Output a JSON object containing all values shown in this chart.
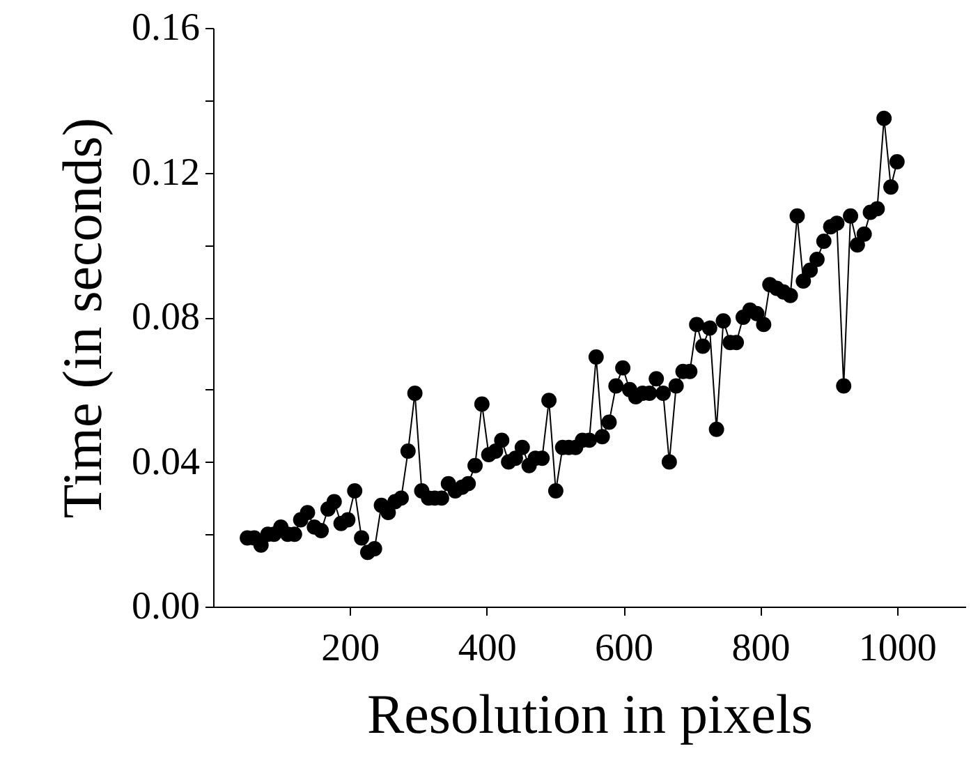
{
  "chart_data": {
    "type": "line",
    "xlabel": "Resolution in pixels",
    "ylabel": "Time (in seconds)",
    "xlim": [
      0,
      1100
    ],
    "xticks": [
      200,
      400,
      600,
      800,
      1000
    ],
    "ylim": [
      0,
      0.16
    ],
    "yticks": [
      {
        "value": 0,
        "label": "0.00"
      },
      {
        "value": 0.02,
        "label": null
      },
      0.04,
      {
        "value": 0.06,
        "label": null
      },
      0.08,
      {
        "value": 0.1,
        "label": null
      },
      0.12,
      {
        "value": 0.14,
        "label": null
      },
      0.16
    ],
    "grid": false,
    "marker": "circle",
    "line_style": "solid",
    "series": [
      {
        "color": "#000000",
        "x": [
          50,
          60,
          70,
          80,
          89,
          99,
          109,
          119,
          128,
          138,
          148,
          158,
          168,
          177,
          187,
          197,
          207,
          217,
          226,
          236,
          246,
          256,
          266,
          275,
          285,
          295,
          305,
          315,
          324,
          334,
          344,
          354,
          364,
          373,
          383,
          393,
          403,
          413,
          422,
          432,
          442,
          452,
          462,
          471,
          481,
          491,
          501,
          511,
          520,
          530,
          540,
          550,
          560,
          569,
          579,
          589,
          599,
          609,
          618,
          628,
          638,
          648,
          658,
          667,
          677,
          687,
          697,
          707,
          716,
          726,
          736,
          746,
          756,
          765,
          775,
          785,
          795,
          805,
          814,
          824,
          834,
          844,
          854,
          863,
          873,
          883,
          893,
          903,
          912,
          922,
          932,
          942,
          952,
          961,
          971,
          981,
          991,
          1000
        ],
        "values": [
          0.019,
          0.019,
          0.017,
          0.02,
          0.02,
          0.022,
          0.02,
          0.02,
          0.024,
          0.026,
          0.022,
          0.021,
          0.027,
          0.029,
          0.023,
          0.024,
          0.032,
          0.019,
          0.015,
          0.016,
          0.028,
          0.026,
          0.029,
          0.03,
          0.043,
          0.059,
          0.032,
          0.03,
          0.03,
          0.03,
          0.034,
          0.032,
          0.033,
          0.034,
          0.039,
          0.056,
          0.042,
          0.043,
          0.046,
          0.04,
          0.041,
          0.044,
          0.039,
          0.041,
          0.041,
          0.057,
          0.032,
          0.044,
          0.044,
          0.044,
          0.046,
          0.046,
          0.069,
          0.047,
          0.051,
          0.061,
          0.066,
          0.06,
          0.058,
          0.059,
          0.059,
          0.063,
          0.059,
          0.04,
          0.061,
          0.065,
          0.065,
          0.078,
          0.072,
          0.077,
          0.049,
          0.079,
          0.073,
          0.073,
          0.08,
          0.082,
          0.081,
          0.078,
          0.089,
          0.088,
          0.087,
          0.086,
          0.108,
          0.09,
          0.093,
          0.096,
          0.101,
          0.105,
          0.106,
          0.061,
          0.108,
          0.1,
          0.103,
          0.109,
          0.11,
          0.135,
          0.116,
          0.123
        ]
      }
    ]
  }
}
